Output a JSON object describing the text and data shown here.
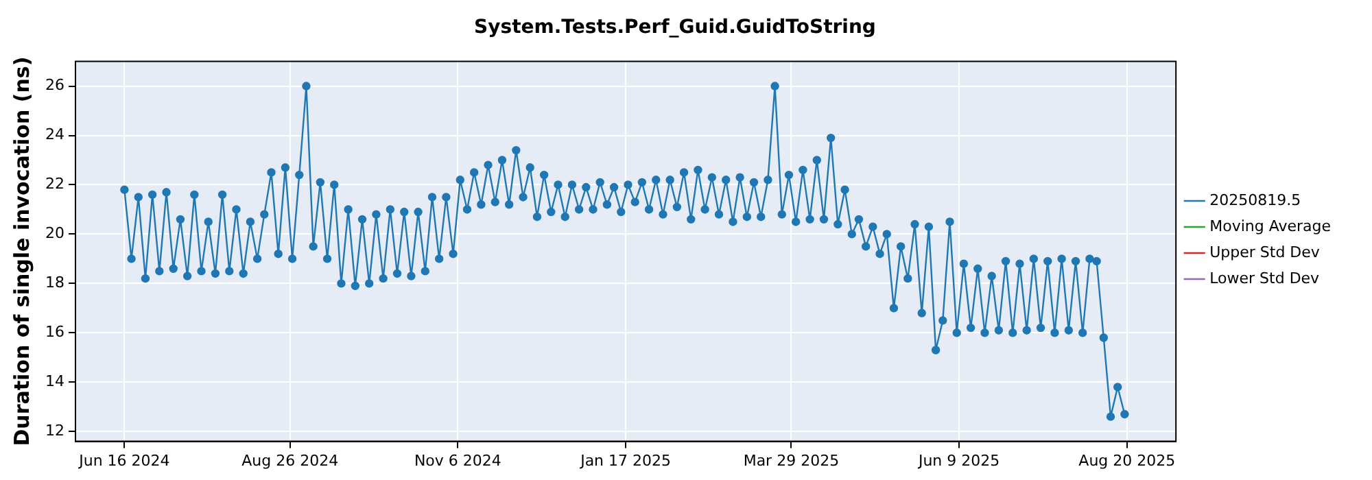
{
  "chart_data": {
    "type": "line",
    "title": "System.Tests.Perf_Guid.GuidToString",
    "ylabel": "Duration of single invocation (ns)",
    "x": [
      "2024-06-16",
      "2024-06-19",
      "2024-06-22",
      "2024-06-25",
      "2024-06-28",
      "2024-07-01",
      "2024-07-04",
      "2024-07-07",
      "2024-07-10",
      "2024-07-13",
      "2024-07-16",
      "2024-07-19",
      "2024-07-22",
      "2024-07-25",
      "2024-07-28",
      "2024-07-31",
      "2024-08-03",
      "2024-08-06",
      "2024-08-09",
      "2024-08-12",
      "2024-08-15",
      "2024-08-18",
      "2024-08-21",
      "2024-08-24",
      "2024-08-27",
      "2024-08-30",
      "2024-09-02",
      "2024-09-05",
      "2024-09-08",
      "2024-09-11",
      "2024-09-14",
      "2024-09-17",
      "2024-09-20",
      "2024-09-23",
      "2024-09-26",
      "2024-09-29",
      "2024-10-02",
      "2024-10-05",
      "2024-10-08",
      "2024-10-11",
      "2024-10-14",
      "2024-10-17",
      "2024-10-20",
      "2024-10-23",
      "2024-10-26",
      "2024-10-29",
      "2024-11-01",
      "2024-11-04",
      "2024-11-07",
      "2024-11-10",
      "2024-11-13",
      "2024-11-16",
      "2024-11-19",
      "2024-11-22",
      "2024-11-25",
      "2024-11-28",
      "2024-12-01",
      "2024-12-04",
      "2024-12-07",
      "2024-12-10",
      "2024-12-13",
      "2024-12-16",
      "2024-12-19",
      "2024-12-22",
      "2024-12-25",
      "2024-12-28",
      "2024-12-31",
      "2025-01-03",
      "2025-01-06",
      "2025-01-09",
      "2025-01-12",
      "2025-01-15",
      "2025-01-18",
      "2025-01-21",
      "2025-01-24",
      "2025-01-27",
      "2025-01-30",
      "2025-02-02",
      "2025-02-05",
      "2025-02-08",
      "2025-02-11",
      "2025-02-14",
      "2025-02-17",
      "2025-02-20",
      "2025-02-23",
      "2025-02-26",
      "2025-03-01",
      "2025-03-04",
      "2025-03-07",
      "2025-03-10",
      "2025-03-13",
      "2025-03-16",
      "2025-03-19",
      "2025-03-22",
      "2025-03-25",
      "2025-03-28",
      "2025-03-31",
      "2025-04-03",
      "2025-04-06",
      "2025-04-09",
      "2025-04-12",
      "2025-04-15",
      "2025-04-18",
      "2025-04-21",
      "2025-04-24",
      "2025-04-27",
      "2025-04-30",
      "2025-05-03",
      "2025-05-06",
      "2025-05-09",
      "2025-05-12",
      "2025-05-15",
      "2025-05-18",
      "2025-05-21",
      "2025-05-24",
      "2025-05-27",
      "2025-05-30",
      "2025-06-02",
      "2025-06-05",
      "2025-06-08",
      "2025-06-11",
      "2025-06-14",
      "2025-06-17",
      "2025-06-20",
      "2025-06-23",
      "2025-06-26",
      "2025-06-29",
      "2025-07-02",
      "2025-07-05",
      "2025-07-08",
      "2025-07-11",
      "2025-07-14",
      "2025-07-17",
      "2025-07-20",
      "2025-07-23",
      "2025-07-26",
      "2025-07-29",
      "2025-08-01",
      "2025-08-04",
      "2025-08-07",
      "2025-08-10",
      "2025-08-13",
      "2025-08-16",
      "2025-08-19"
    ],
    "series": [
      {
        "name": "20250819.5",
        "color": "#1f77b4",
        "values": [
          21.8,
          19.0,
          21.5,
          18.2,
          21.6,
          18.5,
          21.7,
          18.6,
          20.6,
          18.3,
          21.6,
          18.5,
          20.5,
          18.4,
          21.6,
          18.5,
          21.0,
          18.4,
          20.5,
          19.0,
          20.8,
          22.5,
          19.2,
          22.7,
          19.0,
          22.4,
          26.0,
          19.5,
          22.1,
          19.0,
          22.0,
          18.0,
          21.0,
          17.9,
          20.6,
          18.0,
          20.8,
          18.2,
          21.0,
          18.4,
          20.9,
          18.3,
          20.9,
          18.5,
          21.5,
          19.0,
          21.5,
          19.2,
          22.2,
          21.0,
          22.5,
          21.2,
          22.8,
          21.3,
          23.0,
          21.2,
          23.4,
          21.5,
          22.7,
          20.7,
          22.4,
          20.9,
          22.0,
          20.7,
          22.0,
          21.0,
          21.9,
          21.0,
          22.1,
          21.2,
          21.9,
          20.9,
          22.0,
          21.3,
          22.1,
          21.0,
          22.2,
          20.8,
          22.2,
          21.1,
          22.5,
          20.6,
          22.6,
          21.0,
          22.3,
          20.8,
          22.2,
          20.5,
          22.3,
          20.7,
          22.1,
          20.7,
          22.2,
          26.0,
          20.8,
          22.4,
          20.5,
          22.6,
          20.6,
          23.0,
          20.6,
          23.9,
          20.4,
          21.8,
          20.0,
          20.6,
          19.5,
          20.3,
          19.2,
          20.0,
          17.0,
          19.5,
          18.2,
          20.4,
          16.8,
          20.3,
          15.3,
          16.5,
          20.5,
          16.0,
          18.8,
          16.2,
          18.6,
          16.0,
          18.3,
          16.1,
          18.9,
          16.0,
          18.8,
          16.1,
          19.0,
          16.2,
          18.9,
          16.0,
          19.0,
          16.1,
          18.9,
          16.0,
          19.0,
          18.9,
          15.8,
          12.6,
          13.8,
          12.7
        ]
      },
      {
        "name": "Moving Average",
        "color": "#2ca02c",
        "values": [
          null,
          null,
          null,
          null,
          null,
          null,
          null,
          null,
          null,
          null,
          null,
          null,
          null,
          null,
          null,
          null,
          null,
          null,
          null,
          null,
          null,
          null,
          null,
          null,
          null,
          null,
          null,
          null,
          null,
          null,
          null,
          null,
          null,
          null,
          null,
          null,
          null,
          null,
          null,
          null,
          null,
          null,
          null,
          null,
          null,
          null,
          null,
          null,
          null,
          null,
          null,
          null,
          null,
          null,
          null,
          null,
          null,
          null,
          null,
          null,
          null,
          null,
          null,
          null,
          null,
          null,
          null,
          null,
          null,
          null,
          null,
          null,
          null,
          null,
          null,
          null,
          null,
          null,
          null,
          null,
          null,
          null,
          null,
          null,
          null,
          null,
          null,
          null,
          null,
          null,
          null,
          null,
          null,
          null,
          null,
          null,
          null,
          null,
          null,
          null,
          null,
          null,
          null,
          null,
          null,
          null,
          null,
          null,
          null,
          null,
          null,
          null,
          null,
          null,
          null,
          null,
          null,
          null,
          null,
          null,
          null,
          null,
          null,
          null,
          null,
          null,
          null,
          null,
          null,
          null,
          null,
          null,
          null,
          null,
          null,
          null,
          null,
          null,
          null,
          null,
          null,
          null,
          null,
          null
        ]
      },
      {
        "name": "Upper Std Dev",
        "color": "#d62728",
        "values": [
          null,
          null,
          null,
          null,
          null,
          null,
          null,
          null,
          null,
          null,
          null,
          null,
          null,
          null,
          null,
          null,
          null,
          null,
          null,
          null,
          null,
          null,
          null,
          null,
          null,
          null,
          null,
          null,
          null,
          null,
          null,
          null,
          null,
          null,
          null,
          null,
          null,
          null,
          null,
          null,
          null,
          null,
          null,
          null,
          null,
          null,
          null,
          null,
          null,
          null,
          null,
          null,
          null,
          null,
          null,
          null,
          null,
          null,
          null,
          null,
          null,
          null,
          null,
          null,
          null,
          null,
          null,
          null,
          null,
          null,
          null,
          null,
          null,
          null,
          null,
          null,
          null,
          null,
          null,
          null,
          null,
          null,
          null,
          null,
          null,
          null,
          null,
          null,
          null,
          null,
          null,
          null,
          null,
          null,
          null,
          null,
          null,
          null,
          null,
          null,
          null,
          null,
          null,
          null,
          null,
          null,
          null,
          null,
          null,
          null,
          null,
          null,
          null,
          null,
          null,
          null,
          null,
          null,
          null,
          null,
          null,
          null,
          null,
          null,
          null,
          null,
          null,
          null,
          null,
          null,
          null,
          null,
          null,
          null,
          null,
          null,
          null,
          null,
          null,
          null,
          null,
          null,
          null,
          null
        ]
      },
      {
        "name": "Lower Std Dev",
        "color": "#9467bd",
        "values": [
          null,
          null,
          null,
          null,
          null,
          null,
          null,
          null,
          null,
          null,
          null,
          null,
          null,
          null,
          null,
          null,
          null,
          null,
          null,
          null,
          null,
          null,
          null,
          null,
          null,
          null,
          null,
          null,
          null,
          null,
          null,
          null,
          null,
          null,
          null,
          null,
          null,
          null,
          null,
          null,
          null,
          null,
          null,
          null,
          null,
          null,
          null,
          null,
          null,
          null,
          null,
          null,
          null,
          null,
          null,
          null,
          null,
          null,
          null,
          null,
          null,
          null,
          null,
          null,
          null,
          null,
          null,
          null,
          null,
          null,
          null,
          null,
          null,
          null,
          null,
          null,
          null,
          null,
          null,
          null,
          null,
          null,
          null,
          null,
          null,
          null,
          null,
          null,
          null,
          null,
          null,
          null,
          null,
          null,
          null,
          null,
          null,
          null,
          null,
          null,
          null,
          null,
          null,
          null,
          null,
          null,
          null,
          null,
          null,
          null,
          null,
          null,
          null,
          null,
          null,
          null,
          null,
          null,
          null,
          null,
          null,
          null,
          null,
          null,
          null,
          null,
          null,
          null,
          null,
          null,
          null,
          null,
          null,
          null,
          null,
          null,
          null,
          null,
          null,
          null,
          null,
          null,
          null,
          null
        ]
      }
    ],
    "xlim": [
      "2024-05-26",
      "2025-09-10"
    ],
    "xticks": [
      {
        "value": "2024-06-16",
        "label": "Jun 16 2024"
      },
      {
        "value": "2024-08-26",
        "label": "Aug 26 2024"
      },
      {
        "value": "2024-11-06",
        "label": "Nov 6 2024"
      },
      {
        "value": "2025-01-17",
        "label": "Jan 17 2025"
      },
      {
        "value": "2025-03-29",
        "label": "Mar 29 2025"
      },
      {
        "value": "2025-06-09",
        "label": "Jun 9 2025"
      },
      {
        "value": "2025-08-20",
        "label": "Aug 20 2025"
      }
    ],
    "ylim": [
      11.6,
      27
    ],
    "yticks": [
      12,
      14,
      16,
      18,
      20,
      22,
      24,
      26
    ],
    "grid": true,
    "legend": "right",
    "marker": "circle",
    "line_style": "solid"
  }
}
